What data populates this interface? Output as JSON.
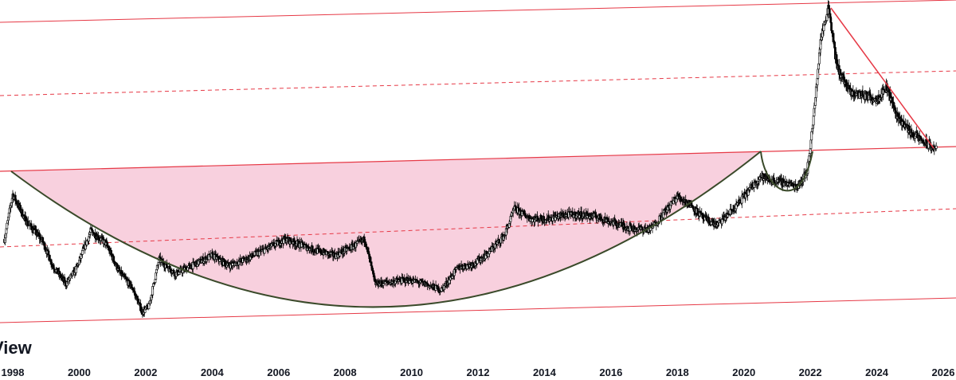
{
  "watermark_text": "View",
  "chart_data": {
    "type": "candlestick",
    "title": "",
    "xlabel": "",
    "ylabel": "",
    "x_tick_labels": [
      "1998",
      "2000",
      "2002",
      "2004",
      "2006",
      "2008",
      "2010",
      "2012",
      "2014",
      "2016",
      "2018",
      "2020",
      "2022",
      "2024",
      "2026"
    ],
    "xlim": [
      1997.7,
      2026.5
    ],
    "y_axis_visible": false,
    "grid": false,
    "legend": "none",
    "price_path": [
      [
        1997.75,
        0.58
      ],
      [
        1998.0,
        0.8
      ],
      [
        1998.4,
        0.67
      ],
      [
        1998.9,
        0.57
      ],
      [
        1999.2,
        0.45
      ],
      [
        1999.6,
        0.36
      ],
      [
        1999.9,
        0.43
      ],
      [
        2000.35,
        0.62
      ],
      [
        2000.8,
        0.56
      ],
      [
        2001.2,
        0.42
      ],
      [
        2001.6,
        0.34
      ],
      [
        2001.9,
        0.22
      ],
      [
        2002.1,
        0.25
      ],
      [
        2002.4,
        0.48
      ],
      [
        2002.9,
        0.41
      ],
      [
        2003.4,
        0.45
      ],
      [
        2004.0,
        0.5
      ],
      [
        2004.5,
        0.45
      ],
      [
        2005.0,
        0.48
      ],
      [
        2005.6,
        0.53
      ],
      [
        2006.2,
        0.58
      ],
      [
        2006.7,
        0.55
      ],
      [
        2007.2,
        0.52
      ],
      [
        2007.7,
        0.5
      ],
      [
        2008.3,
        0.55
      ],
      [
        2008.6,
        0.58
      ],
      [
        2008.9,
        0.36
      ],
      [
        2009.4,
        0.37
      ],
      [
        2009.9,
        0.38
      ],
      [
        2010.4,
        0.36
      ],
      [
        2010.9,
        0.33
      ],
      [
        2011.4,
        0.44
      ],
      [
        2011.9,
        0.46
      ],
      [
        2012.3,
        0.51
      ],
      [
        2012.8,
        0.6
      ],
      [
        2013.1,
        0.73
      ],
      [
        2013.6,
        0.68
      ],
      [
        2014.1,
        0.68
      ],
      [
        2014.6,
        0.7
      ],
      [
        2015.1,
        0.7
      ],
      [
        2015.6,
        0.69
      ],
      [
        2016.1,
        0.66
      ],
      [
        2016.7,
        0.63
      ],
      [
        2017.2,
        0.63
      ],
      [
        2017.7,
        0.73
      ],
      [
        2018.0,
        0.79
      ],
      [
        2018.4,
        0.75
      ],
      [
        2018.8,
        0.68
      ],
      [
        2019.2,
        0.65
      ],
      [
        2019.7,
        0.73
      ],
      [
        2020.1,
        0.81
      ],
      [
        2020.5,
        0.89
      ],
      [
        2020.8,
        0.87
      ],
      [
        2021.2,
        0.86
      ],
      [
        2021.6,
        0.84
      ],
      [
        2021.9,
        0.91
      ],
      [
        2022.1,
        1.18
      ],
      [
        2022.3,
        1.55
      ],
      [
        2022.55,
        1.73
      ],
      [
        2022.8,
        1.43
      ],
      [
        2023.2,
        1.3
      ],
      [
        2023.6,
        1.29
      ],
      [
        2024.0,
        1.27
      ],
      [
        2024.3,
        1.33
      ],
      [
        2024.6,
        1.19
      ],
      [
        2025.0,
        1.11
      ],
      [
        2025.4,
        1.06
      ],
      [
        2025.8,
        1.02
      ]
    ],
    "annotations": [
      {
        "kind": "filled-cup-region",
        "color": "#f8d0de"
      },
      {
        "kind": "cup-arc",
        "color": "#3a4a2a"
      },
      {
        "kind": "handle-arc",
        "color": "#3a4a2a"
      },
      {
        "kind": "neckline",
        "style": "solid",
        "color": "#e63946"
      },
      {
        "kind": "channel-upper",
        "style": "solid",
        "color": "#e63946"
      },
      {
        "kind": "channel-lower",
        "style": "solid",
        "color": "#e63946"
      },
      {
        "kind": "channel-mid-upper",
        "style": "dashed",
        "color": "#e63946"
      },
      {
        "kind": "channel-mid-lower",
        "style": "dashed",
        "color": "#e63946"
      },
      {
        "kind": "descending-trendline",
        "style": "solid",
        "color": "#e63946"
      }
    ],
    "colors": {
      "up_candle": "#ffffff",
      "down_candle": "#000000",
      "wick": "#000000",
      "lines": "#e63946",
      "fill": "#f8d0de",
      "arc": "#3a4a2a"
    }
  }
}
